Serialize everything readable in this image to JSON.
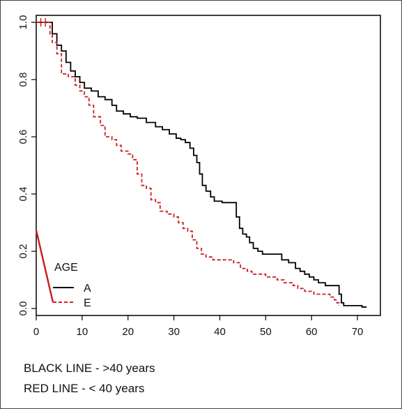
{
  "chart_data": {
    "type": "line",
    "title": "",
    "xlabel": "",
    "ylabel": "",
    "xlim": [
      0,
      75
    ],
    "ylim": [
      0,
      1.0
    ],
    "x_ticks": [
      "0",
      "10",
      "20",
      "30",
      "40",
      "50",
      "60",
      "70"
    ],
    "y_ticks": [
      "0.0",
      "0.2",
      "0.4",
      "0.6",
      "0.8",
      "1.0"
    ],
    "step": true,
    "grid": false,
    "legend": {
      "title": "AGE",
      "position": "bottom-left",
      "entries": [
        "A",
        "E"
      ]
    },
    "series": [
      {
        "name": "A",
        "color": "#000000",
        "dashed": false,
        "points": [
          [
            0,
            1.0
          ],
          [
            3,
            1.0
          ],
          [
            3.5,
            0.96
          ],
          [
            4.5,
            0.92
          ],
          [
            5.5,
            0.9
          ],
          [
            6.5,
            0.86
          ],
          [
            7.5,
            0.83
          ],
          [
            8.5,
            0.81
          ],
          [
            9.5,
            0.79
          ],
          [
            10.5,
            0.77
          ],
          [
            12,
            0.76
          ],
          [
            13.5,
            0.74
          ],
          [
            15,
            0.73
          ],
          [
            16.5,
            0.71
          ],
          [
            17.5,
            0.69
          ],
          [
            19,
            0.68
          ],
          [
            20.5,
            0.67
          ],
          [
            22,
            0.665
          ],
          [
            24,
            0.65
          ],
          [
            26,
            0.635
          ],
          [
            27.5,
            0.625
          ],
          [
            29,
            0.61
          ],
          [
            30.5,
            0.595
          ],
          [
            31.5,
            0.59
          ],
          [
            32.5,
            0.58
          ],
          [
            33.5,
            0.56
          ],
          [
            34.3,
            0.535
          ],
          [
            35,
            0.51
          ],
          [
            35.6,
            0.47
          ],
          [
            36.2,
            0.43
          ],
          [
            37,
            0.41
          ],
          [
            38,
            0.39
          ],
          [
            38.8,
            0.375
          ],
          [
            40.5,
            0.37
          ],
          [
            43,
            0.37
          ],
          [
            43.6,
            0.32
          ],
          [
            44.3,
            0.28
          ],
          [
            45,
            0.26
          ],
          [
            45.8,
            0.25
          ],
          [
            46.5,
            0.23
          ],
          [
            47.3,
            0.21
          ],
          [
            48.3,
            0.2
          ],
          [
            49.3,
            0.19
          ],
          [
            53,
            0.19
          ],
          [
            53.5,
            0.17
          ],
          [
            55,
            0.16
          ],
          [
            56.5,
            0.14
          ],
          [
            57.5,
            0.13
          ],
          [
            58.5,
            0.12
          ],
          [
            59.5,
            0.11
          ],
          [
            60.5,
            0.1
          ],
          [
            61.5,
            0.09
          ],
          [
            63,
            0.08
          ],
          [
            65.5,
            0.08
          ],
          [
            66,
            0.05
          ],
          [
            66.5,
            0.02
          ],
          [
            67,
            0.01
          ],
          [
            70,
            0.01
          ],
          [
            71,
            0.005
          ],
          [
            72,
            0.005
          ]
        ]
      },
      {
        "name": "E",
        "color": "#cc2020",
        "dashed": true,
        "points": [
          [
            0,
            1.0
          ],
          [
            2.5,
            1.0
          ],
          [
            3,
            0.96
          ],
          [
            3.5,
            0.93
          ],
          [
            4.5,
            0.89
          ],
          [
            5.5,
            0.82
          ],
          [
            7,
            0.81
          ],
          [
            8.5,
            0.78
          ],
          [
            9.5,
            0.76
          ],
          [
            10.5,
            0.74
          ],
          [
            11.5,
            0.71
          ],
          [
            12.5,
            0.67
          ],
          [
            14,
            0.64
          ],
          [
            15,
            0.6
          ],
          [
            16.5,
            0.59
          ],
          [
            17.5,
            0.57
          ],
          [
            18.5,
            0.55
          ],
          [
            20,
            0.54
          ],
          [
            21,
            0.52
          ],
          [
            22,
            0.47
          ],
          [
            23,
            0.43
          ],
          [
            24,
            0.42
          ],
          [
            25,
            0.38
          ],
          [
            26,
            0.37
          ],
          [
            27,
            0.34
          ],
          [
            28.5,
            0.33
          ],
          [
            30,
            0.32
          ],
          [
            31,
            0.3
          ],
          [
            32,
            0.28
          ],
          [
            33,
            0.27
          ],
          [
            34,
            0.24
          ],
          [
            35,
            0.21
          ],
          [
            36,
            0.19
          ],
          [
            37,
            0.18
          ],
          [
            38.5,
            0.17
          ],
          [
            41,
            0.17
          ],
          [
            43,
            0.16
          ],
          [
            44.5,
            0.14
          ],
          [
            46,
            0.13
          ],
          [
            47,
            0.12
          ],
          [
            49,
            0.12
          ],
          [
            50,
            0.11
          ],
          [
            51,
            0.11
          ],
          [
            52.5,
            0.1
          ],
          [
            54,
            0.09
          ],
          [
            56,
            0.08
          ],
          [
            57,
            0.07
          ],
          [
            58.5,
            0.06
          ],
          [
            60.5,
            0.05
          ],
          [
            62,
            0.05
          ],
          [
            64,
            0.04
          ],
          [
            65,
            0.03
          ],
          [
            65.5,
            0.02
          ],
          [
            66,
            0.01
          ]
        ]
      }
    ]
  },
  "captions": {
    "line1": "BLACK LINE - >40 years",
    "line2": "RED LINE - < 40 years"
  }
}
